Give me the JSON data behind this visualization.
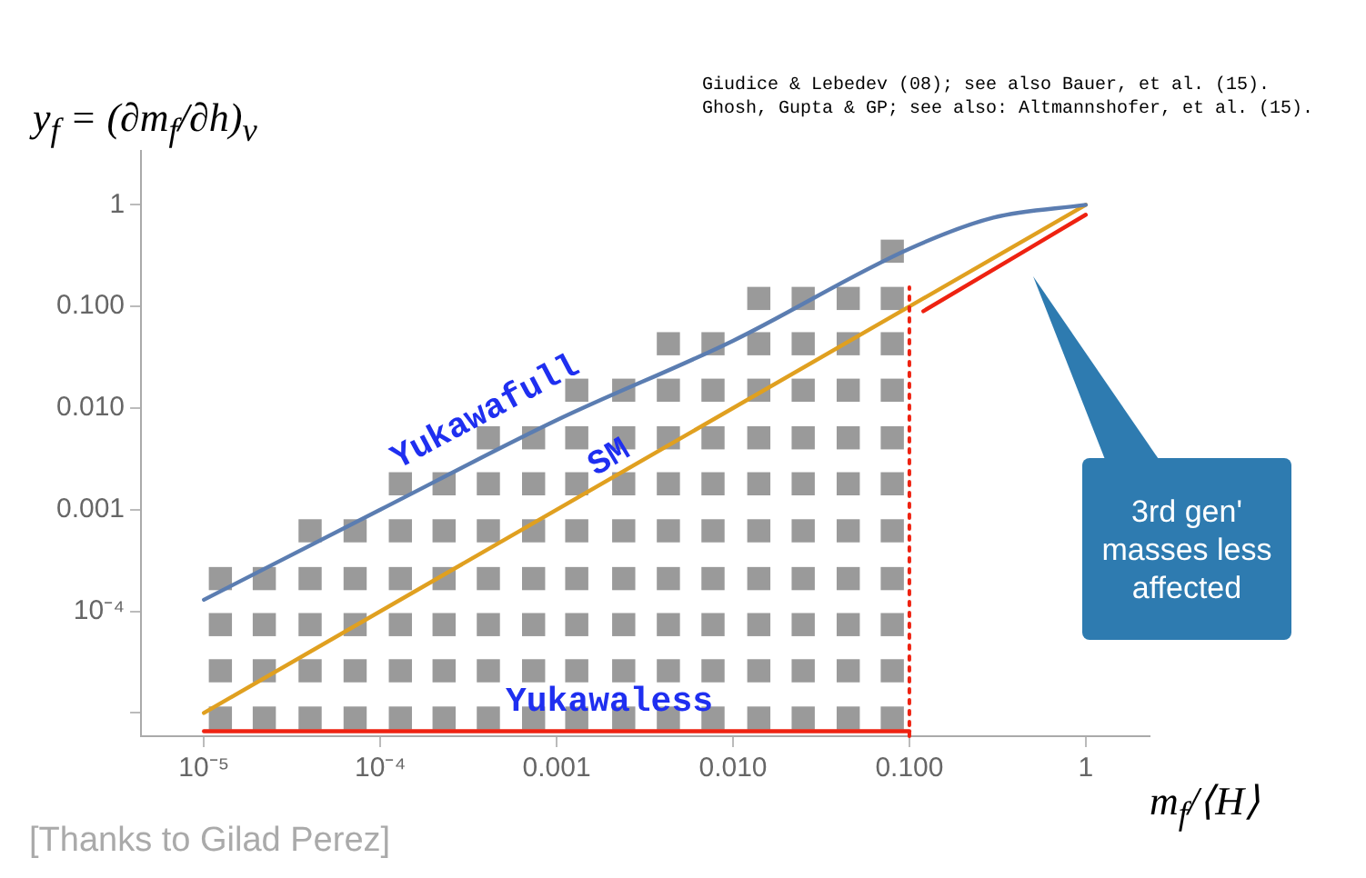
{
  "chart_data": {
    "type": "line",
    "xlabel": "m$_{f}$/⟨H⟩",
    "ylabel": "y$_{f}$ = (∂m$_{f}$/∂h)$_{v}$",
    "log": "xy",
    "grid": false,
    "legend": false,
    "xlim": [
      4.4e-06,
      2.3
    ],
    "ylim": [
      5.9e-06,
      3.4
    ],
    "xticks": [
      {
        "value": 1e-05,
        "label": "10⁻⁵"
      },
      {
        "value": 0.0001,
        "label": "10⁻⁴"
      },
      0.001,
      {
        "value": 0.01,
        "label": "0.010"
      },
      {
        "value": 0.1,
        "label": "0.100"
      },
      1
    ],
    "yticks": [
      {
        "value": 1e-05,
        "label": null
      },
      {
        "value": 0.0001,
        "label": "10⁻⁴"
      },
      0.001,
      {
        "value": 0.01,
        "label": "0.010"
      },
      {
        "value": 0.1,
        "label": "0.100"
      },
      1
    ],
    "series": [
      {
        "type": "scatter",
        "marker": "square",
        "color": "#9a9a9a",
        "x": [
          1.24e-05,
          1.24e-05,
          1.24e-05,
          1.24e-05,
          2.2e-05,
          2.2e-05,
          2.2e-05,
          2.2e-05,
          4e-05,
          4e-05,
          4e-05,
          4e-05,
          4e-05,
          7.2e-05,
          7.2e-05,
          7.2e-05,
          7.2e-05,
          7.2e-05,
          0.00013,
          0.00013,
          0.00013,
          0.00013,
          0.00013,
          0.00013,
          0.00023,
          0.00023,
          0.00023,
          0.00023,
          0.00023,
          0.00023,
          0.00041,
          0.00041,
          0.00041,
          0.00041,
          0.00041,
          0.00041,
          0.00041,
          0.00074,
          0.00074,
          0.00074,
          0.00074,
          0.00074,
          0.00074,
          0.00074,
          0.0013,
          0.0013,
          0.0013,
          0.0013,
          0.0013,
          0.0013,
          0.0013,
          0.0013,
          0.0024,
          0.0024,
          0.0024,
          0.0024,
          0.0024,
          0.0024,
          0.0024,
          0.0024,
          0.0043,
          0.0043,
          0.0043,
          0.0043,
          0.0043,
          0.0043,
          0.0043,
          0.0043,
          0.0043,
          0.0077,
          0.0077,
          0.0077,
          0.0077,
          0.0077,
          0.0077,
          0.0077,
          0.0077,
          0.0077,
          0.014,
          0.014,
          0.014,
          0.014,
          0.014,
          0.014,
          0.014,
          0.014,
          0.014,
          0.014,
          0.025,
          0.025,
          0.025,
          0.025,
          0.025,
          0.025,
          0.025,
          0.025,
          0.025,
          0.025,
          0.045,
          0.045,
          0.045,
          0.045,
          0.045,
          0.045,
          0.045,
          0.045,
          0.045,
          0.045,
          0.08,
          0.08,
          0.08,
          0.08,
          0.08,
          0.08,
          0.08,
          0.08,
          0.08,
          0.08,
          0.08
        ],
        "values": [
          8.9e-06,
          2.6e-05,
          7.4e-05,
          0.00021,
          8.9e-06,
          2.6e-05,
          7.4e-05,
          0.00021,
          8.9e-06,
          2.6e-05,
          7.4e-05,
          0.00021,
          0.00062,
          8.9e-06,
          2.6e-05,
          7.4e-05,
          0.00021,
          0.00062,
          8.9e-06,
          2.6e-05,
          7.4e-05,
          0.00021,
          0.00062,
          0.0018,
          8.9e-06,
          2.6e-05,
          7.4e-05,
          0.00021,
          0.00062,
          0.0018,
          8.9e-06,
          2.6e-05,
          7.4e-05,
          0.00021,
          0.00062,
          0.0018,
          0.0051,
          8.9e-06,
          2.6e-05,
          7.4e-05,
          0.00021,
          0.00062,
          0.0018,
          0.0051,
          8.9e-06,
          2.6e-05,
          7.4e-05,
          0.00021,
          0.00062,
          0.0018,
          0.0051,
          0.015,
          8.9e-06,
          2.6e-05,
          7.4e-05,
          0.00021,
          0.00062,
          0.0018,
          0.0051,
          0.015,
          8.9e-06,
          2.6e-05,
          7.4e-05,
          0.00021,
          0.00062,
          0.0018,
          0.0051,
          0.015,
          0.043,
          8.9e-06,
          2.6e-05,
          7.4e-05,
          0.00021,
          0.00062,
          0.0018,
          0.0051,
          0.015,
          0.043,
          8.9e-06,
          2.6e-05,
          7.4e-05,
          0.00021,
          0.00062,
          0.0018,
          0.0051,
          0.015,
          0.043,
          0.12,
          8.9e-06,
          2.6e-05,
          7.4e-05,
          0.00021,
          0.00062,
          0.0018,
          0.0051,
          0.015,
          0.043,
          0.12,
          8.9e-06,
          2.6e-05,
          7.4e-05,
          0.00021,
          0.00062,
          0.0018,
          0.0051,
          0.015,
          0.043,
          0.12,
          8.9e-06,
          2.6e-05,
          7.4e-05,
          0.00021,
          0.00062,
          0.0018,
          0.0051,
          0.015,
          0.043,
          0.12,
          0.35
        ]
      },
      {
        "type": "line",
        "name": "Yukawafull",
        "color": "#5b7db1",
        "x": [
          1e-05,
          0.0001,
          0.001,
          0.01,
          0.1,
          0.3,
          1
        ],
        "values": [
          0.00013,
          0.001,
          0.0076,
          0.046,
          0.37,
          0.75,
          1
        ]
      },
      {
        "type": "line",
        "name": "SM",
        "color": "#e0a020",
        "x": [
          1e-05,
          1
        ],
        "values": [
          1e-05,
          1
        ]
      },
      {
        "type": "line",
        "name": "Yukawaless",
        "color": "#ee2211",
        "x": [
          1e-05,
          0.1
        ],
        "values": [
          6.6e-06,
          6.6e-06
        ]
      },
      {
        "type": "line",
        "color": "#ee2211",
        "x": [
          0.12,
          1
        ],
        "values": [
          0.09,
          0.8
        ]
      }
    ],
    "ref_lines": [
      {
        "axis": "x",
        "value": 0.1,
        "color": "#ee2211",
        "line_style": "dotted"
      }
    ],
    "annotations": [
      "Giudice & Lebedev (08); see also Bauer, et al. (15).",
      "Ghosh, Gupta & GP; see also: Altmannshofer, et al. (15).",
      "3rd gen' masses less affected",
      "[Thanks to Gilad Perez]"
    ]
  }
}
